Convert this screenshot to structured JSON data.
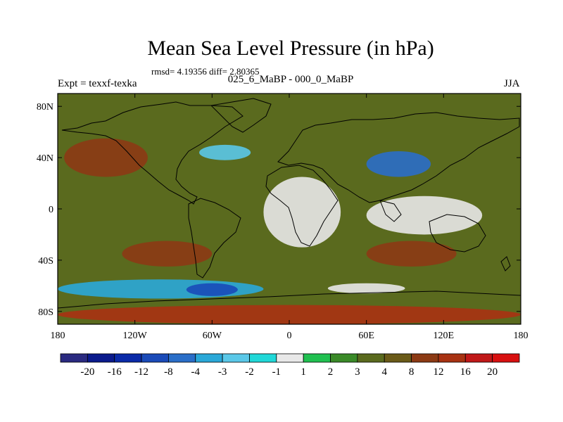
{
  "figure": {
    "title": "Mean Sea Level Pressure (in hPa)",
    "rmsd_text": "rmsd= 4.19356 diff= 2.80365",
    "experiment": "Expt = texxf-texka",
    "difference": "025_6_MaBP - 000_0_MaBP",
    "season": "JJA"
  },
  "map": {
    "projection": "cylindrical-equidistant",
    "lon_range": [
      -180,
      180
    ],
    "lat_range": [
      -90,
      90
    ],
    "x_ticks": [
      {
        "lon": -180,
        "label": "180"
      },
      {
        "lon": -120,
        "label": "120W"
      },
      {
        "lon": -60,
        "label": "60W"
      },
      {
        "lon": 0,
        "label": "0"
      },
      {
        "lon": 60,
        "label": "60E"
      },
      {
        "lon": 120,
        "label": "120E"
      },
      {
        "lon": 180,
        "label": "180"
      }
    ],
    "y_ticks": [
      {
        "lat": 80,
        "label": "80N"
      },
      {
        "lat": 40,
        "label": "40N"
      },
      {
        "lat": 0,
        "label": "0"
      },
      {
        "lat": -40,
        "label": "40S"
      },
      {
        "lat": -80,
        "label": "80S"
      }
    ],
    "background_level_color": "#5a6a1e",
    "regions": [
      {
        "name": "band-antarctic-high",
        "lon": [
          -180,
          180
        ],
        "lat": [
          -90,
          -75
        ],
        "color": "#a83212"
      },
      {
        "name": "south-pacific-high",
        "lon": [
          -130,
          -60
        ],
        "lat": [
          -45,
          -25
        ],
        "color": "#8c3a14"
      },
      {
        "name": "south-indian-high",
        "lon": [
          60,
          130
        ],
        "lat": [
          -45,
          -25
        ],
        "color": "#8c3a14"
      },
      {
        "name": "north-pacific-high",
        "lon": [
          -175,
          -110
        ],
        "lat": [
          25,
          55
        ],
        "color": "#8c3a14"
      },
      {
        "name": "south-ocean-low-west",
        "lon": [
          -180,
          -20
        ],
        "lat": [
          -70,
          -55
        ],
        "color": "#2aa8d8"
      },
      {
        "name": "south-ocean-low-core",
        "lon": [
          -80,
          -40
        ],
        "lat": [
          -68,
          -58
        ],
        "color": "#1a4ab8"
      },
      {
        "name": "south-ocean-low-east",
        "lon": [
          30,
          90
        ],
        "lat": [
          -66,
          -58
        ],
        "color": "#e8e8e8"
      },
      {
        "name": "asia-low",
        "lon": [
          60,
          110
        ],
        "lat": [
          25,
          45
        ],
        "color": "#2a6ec8"
      },
      {
        "name": "africa-neutral",
        "lon": [
          -20,
          40
        ],
        "lat": [
          -30,
          25
        ],
        "color": "#e8e8e8"
      },
      {
        "name": "indian-neutral",
        "lon": [
          60,
          150
        ],
        "lat": [
          -20,
          10
        ],
        "color": "#e8e8e8"
      },
      {
        "name": "north-atlantic-low",
        "lon": [
          -70,
          -30
        ],
        "lat": [
          38,
          50
        ],
        "color": "#5ac8e8"
      }
    ]
  },
  "colorbar": {
    "labels": [
      "-20",
      "-16",
      "-12",
      "-8",
      "-4",
      "-3",
      "-2",
      "-1",
      "1",
      "2",
      "3",
      "4",
      "8",
      "12",
      "16",
      "20"
    ],
    "colors": [
      "#2a2a80",
      "#0a1a8c",
      "#0a2aa8",
      "#1a4ab8",
      "#2a6ec8",
      "#2aa8d8",
      "#5ac8e8",
      "#20d8d8",
      "#e8e8e8",
      "#20c050",
      "#3a8a28",
      "#5a6a1e",
      "#6a5a18",
      "#8c3a14",
      "#a83212",
      "#c01818",
      "#d81010"
    ]
  }
}
